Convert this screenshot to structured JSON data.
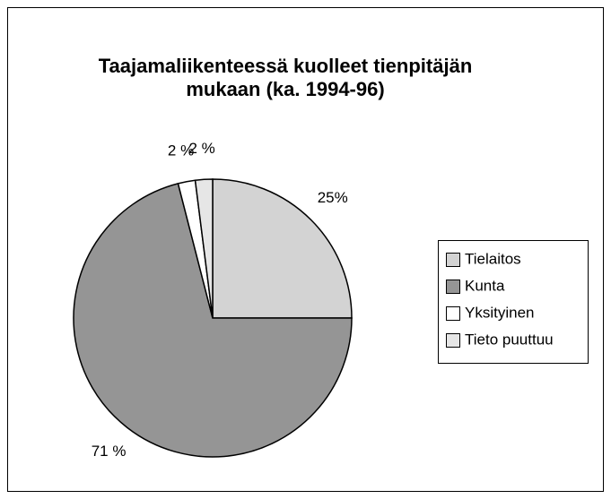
{
  "chart_data": {
    "type": "pie",
    "title": [
      "Taajamaliikenteessä kuolleet tienpitäjän",
      "mukaan (ka. 1994-96)"
    ],
    "categories": [
      "Tielaitos",
      "Kunta",
      "Yksityinen",
      "Tieto puuttuu"
    ],
    "values": [
      25,
      71,
      2,
      2
    ],
    "value_labels": [
      "25%",
      "71 %",
      "2 %",
      "2 %"
    ],
    "colors": [
      "#d3d3d3",
      "#959595",
      "#ffffff",
      "#e6e6e6"
    ],
    "legend": "right"
  }
}
